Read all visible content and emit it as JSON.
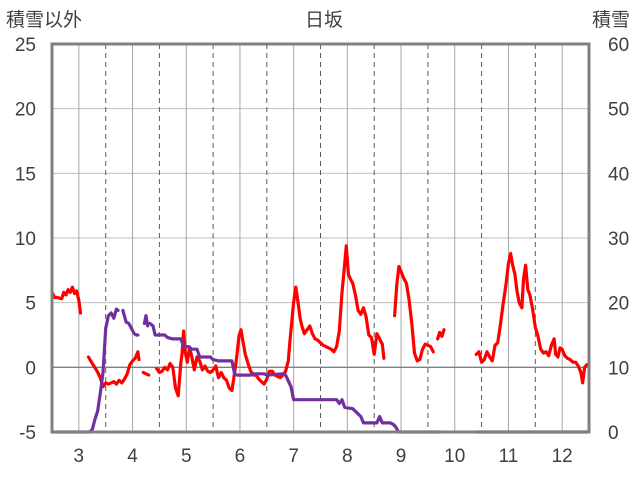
{
  "chart_data": {
    "type": "line",
    "title": "日坂",
    "ylabel_left": "積雪以外",
    "ylabel_right": "積雪",
    "xlim": [
      2.5,
      12.5
    ],
    "ylim_left": [
      -5,
      25
    ],
    "ylim_right": [
      0,
      60
    ],
    "x_ticks": [
      3,
      4,
      5,
      6,
      7,
      8,
      9,
      10,
      11,
      12
    ],
    "y_ticks_left": [
      -5,
      0,
      5,
      10,
      15,
      20,
      25
    ],
    "y_ticks_right": [
      0,
      10,
      20,
      30,
      40,
      50,
      60
    ],
    "grid": true,
    "series": [
      {
        "name": "",
        "axis": "left",
        "color": "#ff0000",
        "segments": [
          [
            [
              2.5,
              5.8
            ],
            [
              2.55,
              5.4
            ],
            [
              2.6,
              5.4
            ],
            [
              2.68,
              5.3
            ],
            [
              2.72,
              5.8
            ],
            [
              2.76,
              5.6
            ],
            [
              2.8,
              6.0
            ],
            [
              2.84,
              5.8
            ],
            [
              2.88,
              6.2
            ],
            [
              2.92,
              5.7
            ],
            [
              2.96,
              5.9
            ],
            [
              3.0,
              5.2
            ],
            [
              3.03,
              4.2
            ]
          ],
          [
            [
              3.18,
              0.8
            ],
            [
              3.22,
              0.5
            ],
            [
              3.28,
              0.1
            ],
            [
              3.34,
              -0.3
            ],
            [
              3.4,
              -0.8
            ],
            [
              3.45,
              -1.5
            ],
            [
              3.5,
              -1.2
            ],
            [
              3.55,
              -1.3
            ],
            [
              3.6,
              -1.2
            ],
            [
              3.65,
              -1.1
            ],
            [
              3.7,
              -1.3
            ],
            [
              3.75,
              -1.0
            ],
            [
              3.8,
              -1.2
            ],
            [
              3.85,
              -0.9
            ],
            [
              3.9,
              -0.5
            ],
            [
              3.95,
              0.2
            ],
            [
              4.0,
              0.5
            ],
            [
              4.05,
              0.7
            ],
            [
              4.1,
              1.2
            ],
            [
              4.12,
              0.6
            ]
          ],
          [
            [
              4.2,
              -0.4
            ],
            [
              4.25,
              -0.5
            ],
            [
              4.3,
              -0.6
            ]
          ],
          [
            [
              4.45,
              -0.1
            ],
            [
              4.5,
              -0.4
            ],
            [
              4.55,
              -0.3
            ],
            [
              4.6,
              0.0
            ],
            [
              4.65,
              -0.2
            ],
            [
              4.7,
              0.3
            ],
            [
              4.75,
              0.0
            ],
            [
              4.8,
              -1.6
            ],
            [
              4.85,
              -2.2
            ],
            [
              4.9,
              0.4
            ],
            [
              4.92,
              1.0
            ],
            [
              4.95,
              2.8
            ],
            [
              4.98,
              1.2
            ],
            [
              5.02,
              0.4
            ],
            [
              5.06,
              1.5
            ],
            [
              5.1,
              0.9
            ],
            [
              5.15,
              -0.2
            ],
            [
              5.2,
              0.8
            ],
            [
              5.25,
              0.5
            ],
            [
              5.3,
              -0.2
            ],
            [
              5.35,
              0.1
            ],
            [
              5.4,
              -0.3
            ],
            [
              5.45,
              -0.4
            ],
            [
              5.5,
              -0.2
            ],
            [
              5.55,
              0.1
            ],
            [
              5.6,
              -0.8
            ],
            [
              5.65,
              -0.4
            ],
            [
              5.7,
              -0.8
            ],
            [
              5.75,
              -1.0
            ],
            [
              5.8,
              -1.6
            ],
            [
              5.85,
              -1.8
            ],
            [
              5.88,
              -1.0
            ],
            [
              5.92,
              0.2
            ],
            [
              5.95,
              1.2
            ],
            [
              5.98,
              2.4
            ],
            [
              6.02,
              2.9
            ],
            [
              6.06,
              1.9
            ],
            [
              6.1,
              1.0
            ],
            [
              6.15,
              0.3
            ],
            [
              6.2,
              -0.3
            ],
            [
              6.25,
              -0.6
            ],
            [
              6.3,
              -0.6
            ],
            [
              6.35,
              -0.9
            ],
            [
              6.4,
              -1.1
            ],
            [
              6.45,
              -1.3
            ],
            [
              6.5,
              -0.9
            ],
            [
              6.55,
              -0.3
            ],
            [
              6.6,
              -0.3
            ],
            [
              6.65,
              -0.6
            ],
            [
              6.7,
              -0.7
            ],
            [
              6.75,
              -0.8
            ],
            [
              6.8,
              -0.6
            ],
            [
              6.85,
              -0.3
            ],
            [
              6.9,
              0.5
            ],
            [
              6.93,
              2.0
            ],
            [
              6.96,
              3.3
            ],
            [
              7.0,
              5.0
            ],
            [
              7.04,
              6.2
            ],
            [
              7.08,
              5.1
            ],
            [
              7.12,
              3.8
            ],
            [
              7.16,
              3.1
            ],
            [
              7.2,
              2.6
            ],
            [
              7.25,
              2.9
            ],
            [
              7.3,
              3.2
            ],
            [
              7.35,
              2.6
            ],
            [
              7.4,
              2.2
            ],
            [
              7.45,
              2.1
            ],
            [
              7.5,
              1.9
            ],
            [
              7.55,
              1.7
            ],
            [
              7.6,
              1.6
            ],
            [
              7.65,
              1.5
            ],
            [
              7.7,
              1.4
            ],
            [
              7.75,
              1.2
            ],
            [
              7.8,
              1.6
            ],
            [
              7.85,
              2.8
            ],
            [
              7.9,
              5.8
            ],
            [
              7.94,
              7.5
            ],
            [
              7.98,
              9.4
            ],
            [
              8.02,
              7.2
            ],
            [
              8.06,
              6.8
            ],
            [
              8.1,
              6.5
            ],
            [
              8.15,
              5.6
            ],
            [
              8.2,
              4.4
            ],
            [
              8.25,
              4.1
            ],
            [
              8.3,
              4.6
            ],
            [
              8.35,
              3.9
            ],
            [
              8.4,
              2.5
            ],
            [
              8.45,
              2.3
            ],
            [
              8.5,
              1.0
            ],
            [
              8.55,
              2.6
            ],
            [
              8.6,
              2.2
            ],
            [
              8.65,
              1.8
            ],
            [
              8.68,
              0.7
            ]
          ],
          [
            [
              8.88,
              4.0
            ],
            [
              8.92,
              6.4
            ],
            [
              8.96,
              7.8
            ],
            [
              9.0,
              7.4
            ],
            [
              9.05,
              6.9
            ],
            [
              9.1,
              6.5
            ],
            [
              9.15,
              5.2
            ],
            [
              9.2,
              3.4
            ],
            [
              9.25,
              1.1
            ],
            [
              9.3,
              0.5
            ],
            [
              9.35,
              0.6
            ],
            [
              9.4,
              1.4
            ],
            [
              9.45,
              1.8
            ],
            [
              9.5,
              1.7
            ],
            [
              9.55,
              1.6
            ],
            [
              9.6,
              1.2
            ]
          ],
          [
            [
              9.68,
              2.2
            ],
            [
              9.72,
              2.7
            ],
            [
              9.76,
              2.4
            ],
            [
              9.8,
              2.9
            ]
          ],
          [
            [
              10.4,
              1.0
            ],
            [
              10.45,
              1.2
            ],
            [
              10.5,
              0.4
            ],
            [
              10.55,
              0.6
            ],
            [
              10.6,
              1.2
            ],
            [
              10.65,
              0.8
            ],
            [
              10.7,
              0.5
            ],
            [
              10.75,
              1.7
            ],
            [
              10.8,
              1.9
            ],
            [
              10.85,
              3.3
            ],
            [
              10.9,
              4.9
            ],
            [
              10.95,
              6.3
            ],
            [
              11.0,
              8.0
            ],
            [
              11.04,
              8.8
            ],
            [
              11.08,
              7.9
            ],
            [
              11.12,
              7.2
            ],
            [
              11.16,
              5.9
            ],
            [
              11.2,
              5.0
            ],
            [
              11.25,
              4.6
            ],
            [
              11.28,
              6.8
            ],
            [
              11.32,
              7.9
            ],
            [
              11.36,
              6.0
            ],
            [
              11.4,
              5.6
            ],
            [
              11.45,
              4.5
            ],
            [
              11.5,
              3.1
            ],
            [
              11.55,
              2.4
            ],
            [
              11.6,
              1.4
            ],
            [
              11.65,
              1.1
            ],
            [
              11.7,
              1.2
            ],
            [
              11.75,
              0.9
            ],
            [
              11.8,
              1.7
            ],
            [
              11.85,
              2.2
            ],
            [
              11.88,
              1.0
            ],
            [
              11.92,
              0.8
            ],
            [
              11.96,
              1.5
            ],
            [
              12.0,
              1.4
            ],
            [
              12.05,
              0.9
            ],
            [
              12.1,
              0.7
            ],
            [
              12.15,
              0.6
            ],
            [
              12.2,
              0.4
            ],
            [
              12.25,
              0.4
            ],
            [
              12.3,
              0.1
            ],
            [
              12.35,
              -0.4
            ],
            [
              12.38,
              -1.2
            ],
            [
              12.42,
              0.0
            ],
            [
              12.46,
              0.2
            ]
          ]
        ]
      },
      {
        "name": "",
        "axis": "left",
        "color": "#7030a0",
        "segments": [
          [
            [
              2.5,
              -5.0
            ],
            [
              3.2,
              -5.0
            ],
            [
              3.25,
              -4.8
            ],
            [
              3.3,
              -4.0
            ],
            [
              3.35,
              -3.4
            ],
            [
              3.4,
              -2.0
            ],
            [
              3.45,
              -0.4
            ],
            [
              3.5,
              3.0
            ],
            [
              3.55,
              4.0
            ],
            [
              3.6,
              4.2
            ],
            [
              3.65,
              3.8
            ],
            [
              3.7,
              4.5
            ],
            [
              3.73,
              4.4
            ]
          ],
          [
            [
              3.82,
              4.4
            ],
            [
              3.88,
              3.5
            ],
            [
              3.93,
              3.4
            ],
            [
              3.98,
              3.0
            ],
            [
              4.03,
              2.6
            ],
            [
              4.07,
              2.5
            ],
            [
              4.1,
              2.5
            ]
          ],
          [
            [
              4.22,
              3.4
            ],
            [
              4.25,
              4.0
            ],
            [
              4.28,
              3.2
            ]
          ],
          [
            [
              4.32,
              3.4
            ],
            [
              4.38,
              3.2
            ],
            [
              4.42,
              2.5
            ],
            [
              4.6,
              2.5
            ],
            [
              4.65,
              2.3
            ],
            [
              4.75,
              2.2
            ],
            [
              4.9,
              2.2
            ],
            [
              4.95,
              1.6
            ],
            [
              5.05,
              1.6
            ],
            [
              5.1,
              1.4
            ],
            [
              5.2,
              1.4
            ],
            [
              5.25,
              0.8
            ],
            [
              5.45,
              0.8
            ],
            [
              5.5,
              0.6
            ],
            [
              5.6,
              0.5
            ],
            [
              5.85,
              0.5
            ],
            [
              5.9,
              -0.5
            ],
            [
              5.95,
              -0.6
            ],
            [
              6.2,
              -0.6
            ],
            [
              6.25,
              -0.5
            ],
            [
              6.45,
              -0.5
            ],
            [
              6.5,
              -0.6
            ],
            [
              6.8,
              -0.5
            ],
            [
              6.85,
              -0.6
            ],
            [
              6.95,
              -1.5
            ],
            [
              7.0,
              -2.5
            ],
            [
              7.8,
              -2.5
            ],
            [
              7.85,
              -2.8
            ],
            [
              7.9,
              -2.5
            ],
            [
              7.95,
              -3.1
            ],
            [
              8.1,
              -3.2
            ],
            [
              8.15,
              -3.4
            ],
            [
              8.25,
              -3.8
            ],
            [
              8.3,
              -4.3
            ],
            [
              8.55,
              -4.3
            ],
            [
              8.6,
              -3.8
            ],
            [
              8.65,
              -4.3
            ],
            [
              8.8,
              -4.3
            ],
            [
              8.85,
              -4.4
            ],
            [
              8.9,
              -4.6
            ],
            [
              8.95,
              -5.0
            ],
            [
              9.7,
              -5.0
            ]
          ],
          [
            [
              10.4,
              -5.0
            ],
            [
              12.46,
              -5.0
            ]
          ]
        ]
      }
    ]
  }
}
